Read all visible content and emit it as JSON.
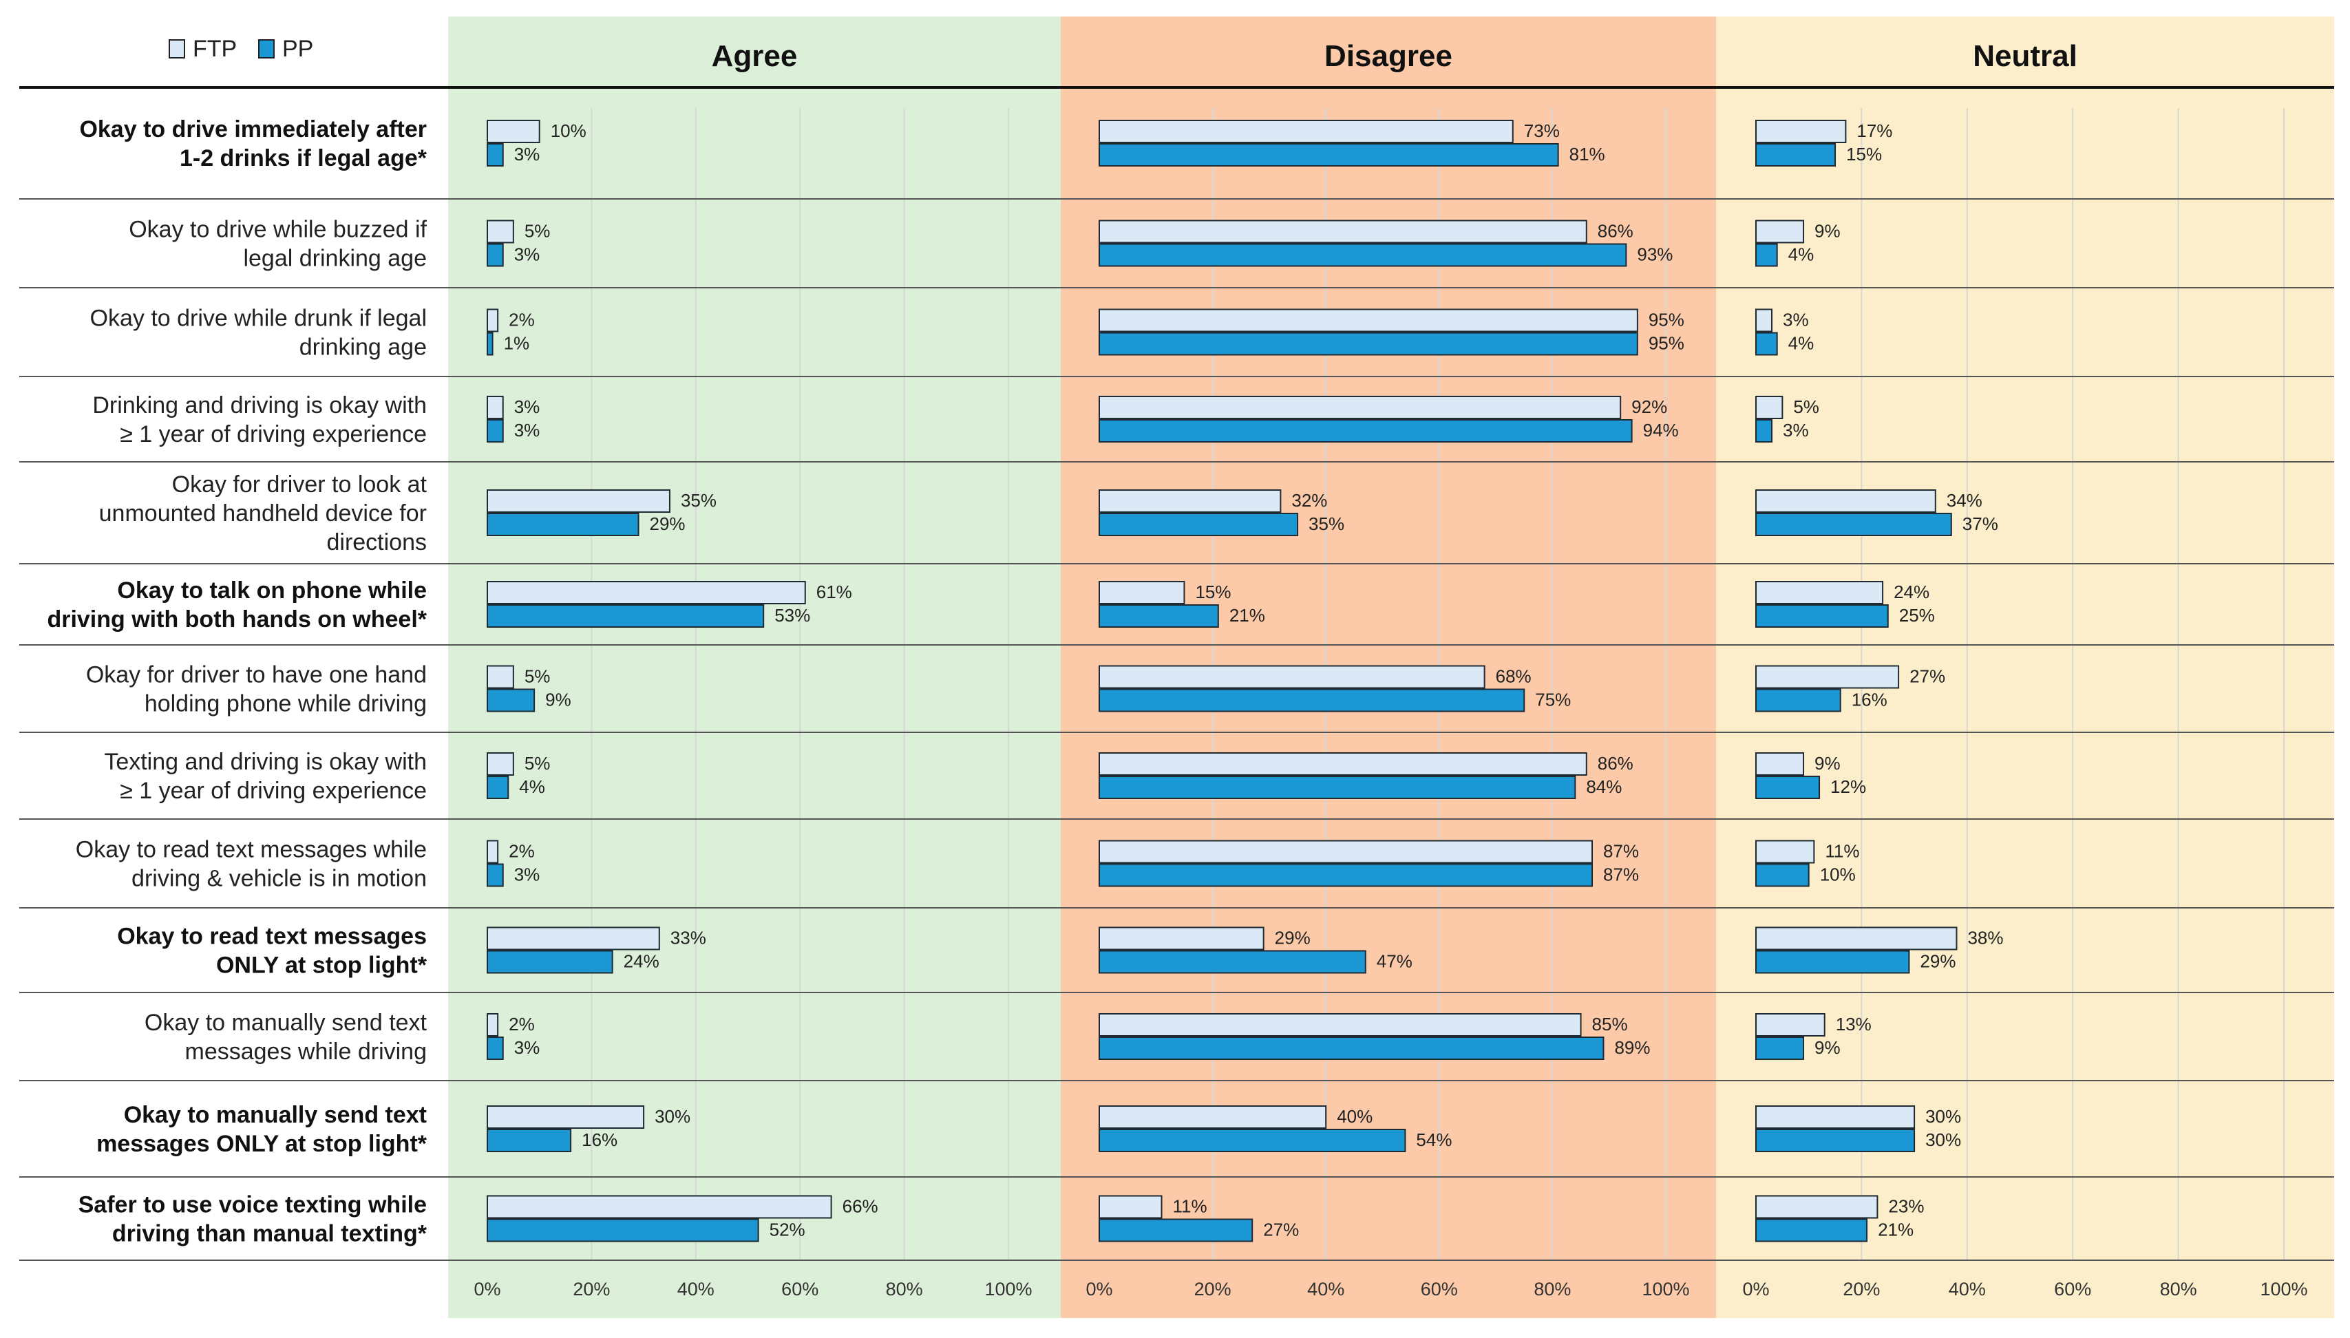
{
  "chart_data": {
    "type": "bar",
    "orientation": "horizontal",
    "legend": {
      "position": "top-left",
      "entries": [
        {
          "name": "FTP",
          "color": "#dbe9f6"
        },
        {
          "name": "PP",
          "color": "#1b97d4"
        }
      ]
    },
    "panels": [
      {
        "title": "Agree",
        "background": "#dcefd8"
      },
      {
        "title": "Disagree",
        "background": "#fccaa8"
      },
      {
        "title": "Neutral",
        "background": "#fdeecb"
      }
    ],
    "xlim": [
      0,
      100
    ],
    "xticks": [
      "0%",
      "20%",
      "40%",
      "60%",
      "80%",
      "100%"
    ],
    "grid": true,
    "categories": [
      {
        "lines": [
          "Okay to drive immediately after",
          "1-2 drinks if legal age*"
        ],
        "bold": true
      },
      {
        "lines": [
          "Okay to drive while buzzed if",
          "legal drinking age"
        ],
        "bold": false
      },
      {
        "lines": [
          "Okay to drive while drunk if legal",
          "drinking age"
        ],
        "bold": false
      },
      {
        "lines": [
          "Drinking and driving is okay with",
          "≥ 1 year of driving experience"
        ],
        "bold": false
      },
      {
        "lines": [
          "Okay for driver to look at",
          "unmounted handheld device for",
          "directions"
        ],
        "bold": false
      },
      {
        "lines": [
          "Okay to talk on phone while",
          "driving with both hands on wheel*"
        ],
        "bold": true
      },
      {
        "lines": [
          "Okay for driver to have one hand",
          "holding phone while driving"
        ],
        "bold": false
      },
      {
        "lines": [
          "Texting and driving is okay with",
          "≥ 1 year of driving experience"
        ],
        "bold": false
      },
      {
        "lines": [
          "Okay to read text messages while",
          "driving & vehicle is in motion"
        ],
        "bold": false
      },
      {
        "lines": [
          "Okay to read text messages",
          "ONLY at stop light*"
        ],
        "bold": true
      },
      {
        "lines": [
          "Okay to manually send text",
          "messages while driving"
        ],
        "bold": false
      },
      {
        "lines": [
          "Okay to manually send text",
          "messages ONLY at stop light*"
        ],
        "bold": true
      },
      {
        "lines": [
          "Safer to use voice texting while",
          "driving than manual texting*"
        ],
        "bold": true
      }
    ],
    "series": [
      {
        "name": "FTP",
        "agree": [
          10,
          5,
          2,
          3,
          35,
          61,
          5,
          5,
          2,
          33,
          2,
          30,
          66
        ],
        "disagree": [
          73,
          86,
          95,
          92,
          32,
          15,
          68,
          86,
          87,
          29,
          85,
          40,
          11
        ],
        "neutral": [
          17,
          9,
          3,
          5,
          34,
          24,
          27,
          9,
          11,
          38,
          13,
          30,
          23
        ]
      },
      {
        "name": "PP",
        "agree": [
          3,
          3,
          1,
          3,
          29,
          53,
          9,
          4,
          3,
          24,
          3,
          16,
          52
        ],
        "disagree": [
          81,
          93,
          95,
          94,
          35,
          21,
          75,
          84,
          87,
          47,
          89,
          54,
          27
        ],
        "neutral": [
          15,
          4,
          4,
          3,
          37,
          25,
          16,
          12,
          10,
          29,
          9,
          30,
          21
        ]
      }
    ]
  }
}
